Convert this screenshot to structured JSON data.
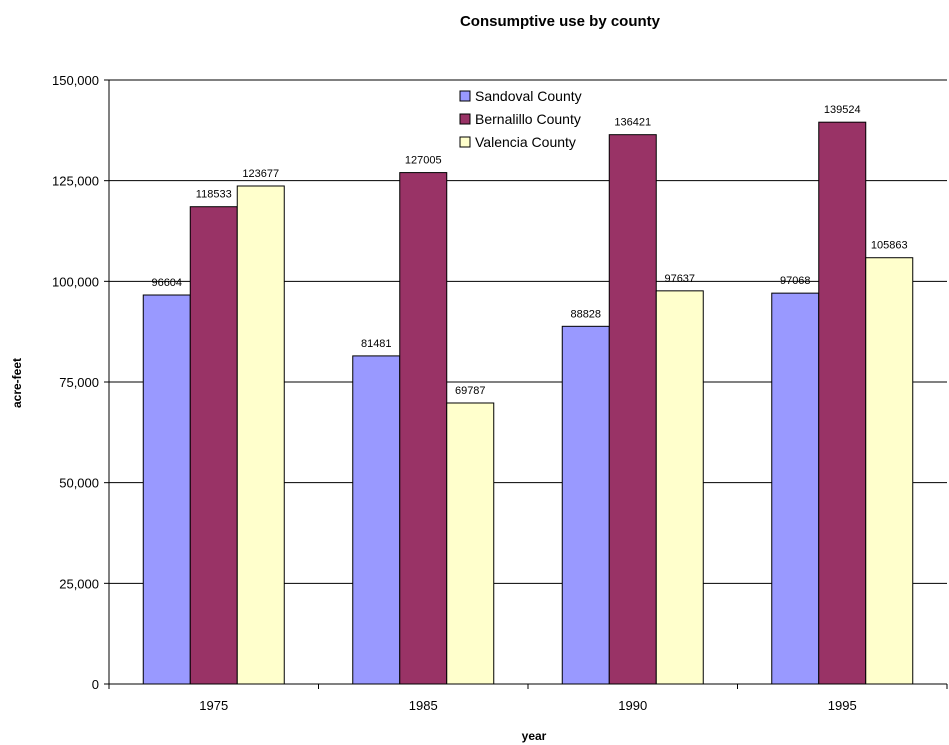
{
  "chart_data": {
    "type": "bar",
    "title": "Consumptive use by county",
    "xlabel": "year",
    "ylabel": "acre-feet",
    "categories": [
      "1975",
      "1985",
      "1990",
      "1995"
    ],
    "series": [
      {
        "name": "Sandoval County",
        "color": "#9999ff",
        "values": [
          96604,
          81481,
          88828,
          97068
        ]
      },
      {
        "name": "Bernalillo County",
        "color": "#993366",
        "values": [
          118533,
          127005,
          136421,
          139524
        ]
      },
      {
        "name": "Valencia County",
        "color": "#ffffcc",
        "values": [
          123677,
          69787,
          97637,
          105863
        ]
      }
    ],
    "ylim": [
      0,
      150000
    ],
    "yticks": [
      0,
      25000,
      50000,
      75000,
      100000,
      125000,
      150000
    ],
    "ytick_labels": [
      "0",
      "25,000",
      "50,000",
      "75,000",
      "100,000",
      "125,000",
      "150,000"
    ],
    "grid": true,
    "legend_position": "top-center"
  }
}
